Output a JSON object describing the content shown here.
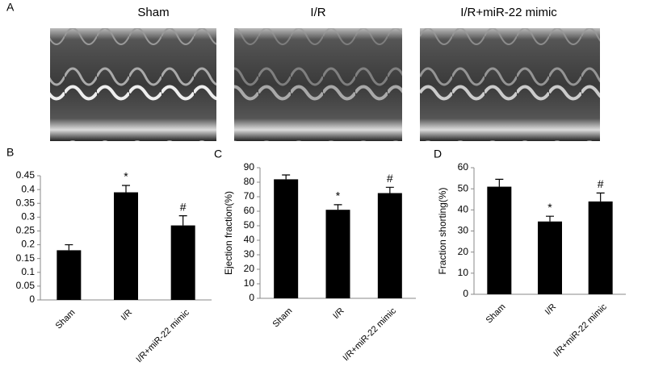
{
  "panel_a": {
    "label": "A",
    "titles": [
      "Sham",
      "I/R",
      "I/R+miR-22 mimic"
    ]
  },
  "chart_data": [
    {
      "type": "bar",
      "panel": "B",
      "categories": [
        "Sham",
        "I/R",
        "I/R+miR-22 mimic"
      ],
      "values": [
        0.18,
        0.39,
        0.27
      ],
      "errors": [
        0.02,
        0.025,
        0.035
      ],
      "markers": [
        null,
        "*",
        "#"
      ],
      "color": "#000000",
      "ylim": [
        0,
        0.45
      ],
      "yticks": [
        0,
        0.05,
        0.1,
        0.15,
        0.2,
        0.25,
        0.3,
        0.35,
        0.4,
        0.45
      ]
    },
    {
      "type": "bar",
      "panel": "C",
      "y_label": "Ejection fraction(%)",
      "categories": [
        "Sham",
        "I/R",
        "I/R+miR-22 mimic"
      ],
      "values": [
        82,
        61,
        72.5
      ],
      "errors": [
        3,
        3.5,
        4
      ],
      "markers": [
        null,
        "*",
        "#"
      ],
      "color": "#000000",
      "ylim": [
        0,
        90
      ],
      "yticks": [
        0,
        10,
        20,
        30,
        40,
        50,
        60,
        70,
        80,
        90
      ]
    },
    {
      "type": "bar",
      "panel": "D",
      "y_label": "Fraction shorting(%)",
      "categories": [
        "Sham",
        "I/R",
        "I/R+miR-22 mimic"
      ],
      "values": [
        51,
        34.5,
        44
      ],
      "errors": [
        3.5,
        2.5,
        4
      ],
      "markers": [
        null,
        "*",
        "#"
      ],
      "color": "#000000",
      "ylim": [
        0,
        60
      ],
      "yticks": [
        0,
        10,
        20,
        30,
        40,
        50,
        60
      ]
    }
  ]
}
